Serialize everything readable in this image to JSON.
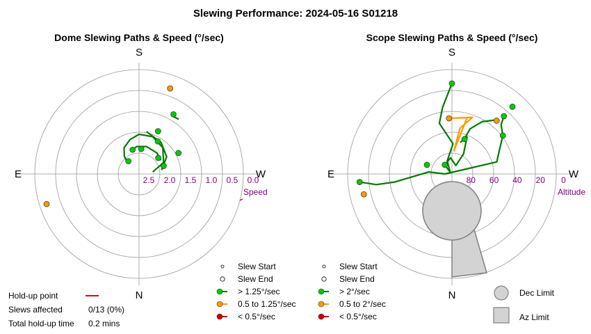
{
  "figure": {
    "title": "Slewing Performance: 2024-05-16 S01218"
  },
  "colors": {
    "fast": "#00cc00",
    "fast_line": "#007a00",
    "medium": "#ff9900",
    "medium_line": "#ff9900",
    "slow": "#cc0000",
    "holdup": "#ee0000",
    "axis_label": "#800080",
    "grid": "#999999",
    "limit_fill": "#d3d3d3",
    "limit_stroke": "#808080"
  },
  "chart_data": [
    {
      "type": "scatter",
      "polar": true,
      "title": "Dome Slewing Paths & Speed (°/sec)",
      "cardinals": {
        "top": "S",
        "bottom": "N",
        "left": "E",
        "right": "W"
      },
      "radial_label": "Speed",
      "radial_ticks": [
        "2.5",
        "2.0",
        "1.5",
        "1.0",
        "0.5",
        "0.0"
      ],
      "radial_range": [
        2.5,
        0.0
      ],
      "grid": true,
      "legend": [
        "Slew Start",
        "Slew End",
        "> 1.25°/sec",
        "0.5 to 1.25°/sec",
        "< 0.5°/sec"
      ],
      "points": [
        {
          "az_deg": 20,
          "r": 2.18,
          "cls": "medium"
        },
        {
          "az_deg": 30,
          "r": 1.65,
          "cls": "fast"
        },
        {
          "az_deg": 62,
          "r": 1.07,
          "cls": "fast"
        },
        {
          "az_deg": 72,
          "r": 0.62,
          "cls": "fast"
        },
        {
          "az_deg": 30,
          "r": 0.9,
          "cls": "fast"
        },
        {
          "az_deg": 24,
          "r": 1.12,
          "cls": "fast"
        },
        {
          "az_deg": 50,
          "r": 0.6,
          "cls": "fast"
        },
        {
          "az_deg": 5,
          "r": 0.6,
          "cls": "fast"
        },
        {
          "az_deg": 345,
          "r": 0.6,
          "cls": "fast"
        },
        {
          "az_deg": 320,
          "r": 0.4,
          "cls": "fast"
        },
        {
          "az_deg": 252,
          "r": 2.33,
          "cls": "medium"
        }
      ],
      "paths": [
        {
          "cls": "fast",
          "pts": [
            [
              82,
              0.33
            ],
            [
              65,
              0.65
            ],
            [
              42,
              0.85
            ],
            [
              20,
              0.95
            ],
            [
              0,
              0.95
            ],
            [
              345,
              0.85
            ],
            [
              330,
              0.72
            ],
            [
              320,
              0.55
            ],
            [
              315,
              0.38
            ]
          ]
        },
        {
          "cls": "fast",
          "pts": [
            [
              80,
              0.55
            ],
            [
              58,
              0.78
            ],
            [
              35,
              0.92
            ],
            [
              10,
              1.03
            ]
          ]
        },
        {
          "cls": "fast",
          "pts": [
            [
              36,
              1.62
            ],
            [
              30,
              1.6
            ]
          ]
        },
        {
          "cls": "fast",
          "pts": [
            [
              58,
              0.62
            ],
            [
              40,
              0.66
            ],
            [
              15,
              0.68
            ],
            [
              -5,
              0.66
            ],
            [
              -20,
              0.58
            ]
          ]
        }
      ]
    },
    {
      "type": "scatter",
      "polar": true,
      "title": "Scope Slewing Paths & Speed (°/sec)",
      "cardinals": {
        "top": "S",
        "bottom": "N",
        "left": "E",
        "right": "W"
      },
      "radial_label": "Altitude",
      "radial_ticks": [
        "80",
        "60",
        "40",
        "20",
        "0"
      ],
      "radial_range": [
        90,
        0
      ],
      "grid": true,
      "legend": [
        "Slew Start",
        "Slew End",
        "> 2°/sec",
        "0.5 to 2°/sec",
        "< 0.5°/sec",
        "Dec Limit",
        "Az Limit"
      ],
      "points": [
        {
          "az_deg": 0,
          "alt": 12,
          "cls": "fast"
        },
        {
          "az_deg": 40,
          "alt": 30,
          "cls": "medium"
        },
        {
          "az_deg": 42,
          "alt": 23,
          "cls": "fast"
        },
        {
          "az_deg": 42,
          "alt": 12,
          "cls": "fast"
        },
        {
          "az_deg": 53,
          "alt": 35,
          "cls": "fast"
        },
        {
          "az_deg": 357,
          "alt": 42,
          "cls": "medium"
        },
        {
          "az_deg": 20,
          "alt": 58,
          "cls": "fast"
        },
        {
          "az_deg": 290,
          "alt": 67,
          "cls": "fast"
        },
        {
          "az_deg": 322,
          "alt": 80,
          "cls": "fast"
        },
        {
          "az_deg": 265,
          "alt": 10,
          "cls": "fast"
        },
        {
          "az_deg": 257,
          "alt": 12,
          "cls": "medium"
        }
      ],
      "paths": [
        {
          "cls": "fast",
          "pts": [
            [
              0,
              12
            ],
            [
              -8,
              32
            ],
            [
              -14,
              45
            ],
            [
              -8,
              55
            ],
            [
              2,
              64
            ],
            [
              -20,
              78
            ],
            [
              -45,
              88
            ],
            [
              -40,
              84
            ],
            [
              -36,
              80
            ]
          ]
        },
        {
          "cls": "fast",
          "pts": [
            [
              40,
              29
            ],
            [
              30,
              38
            ],
            [
              22,
              48
            ],
            [
              20,
              56
            ],
            [
              15,
              62
            ]
          ]
        },
        {
          "cls": "fast",
          "pts": [
            [
              42,
              23
            ],
            [
              45,
              30
            ],
            [
              53,
              35
            ],
            [
              75,
              50
            ],
            [
              270,
              84
            ],
            [
              275,
              70
            ],
            [
              262,
              40
            ],
            [
              262,
              24
            ],
            [
              265,
              10
            ]
          ]
        },
        {
          "cls": "fast",
          "pts": [
            [
              22,
              55
            ],
            [
              30,
              70
            ],
            [
              25,
              82
            ],
            [
              355,
              76
            ],
            [
              325,
              80
            ]
          ]
        },
        {
          "cls": "medium",
          "pts": [
            [
              358,
              42
            ],
            [
              20,
              38
            ],
            [
              10,
              50
            ],
            [
              5,
              70
            ],
            [
              15,
              40
            ]
          ]
        }
      ],
      "dec_limit": {
        "shape": "circle"
      },
      "az_limit": {
        "shape": "wedge"
      }
    }
  ],
  "info": {
    "holdup_label": "Hold-up point",
    "slews_label": "Slews affected",
    "slews_value": "0/13 (0%)",
    "total_label": "Total hold-up time",
    "total_value": "0.2 mins"
  }
}
